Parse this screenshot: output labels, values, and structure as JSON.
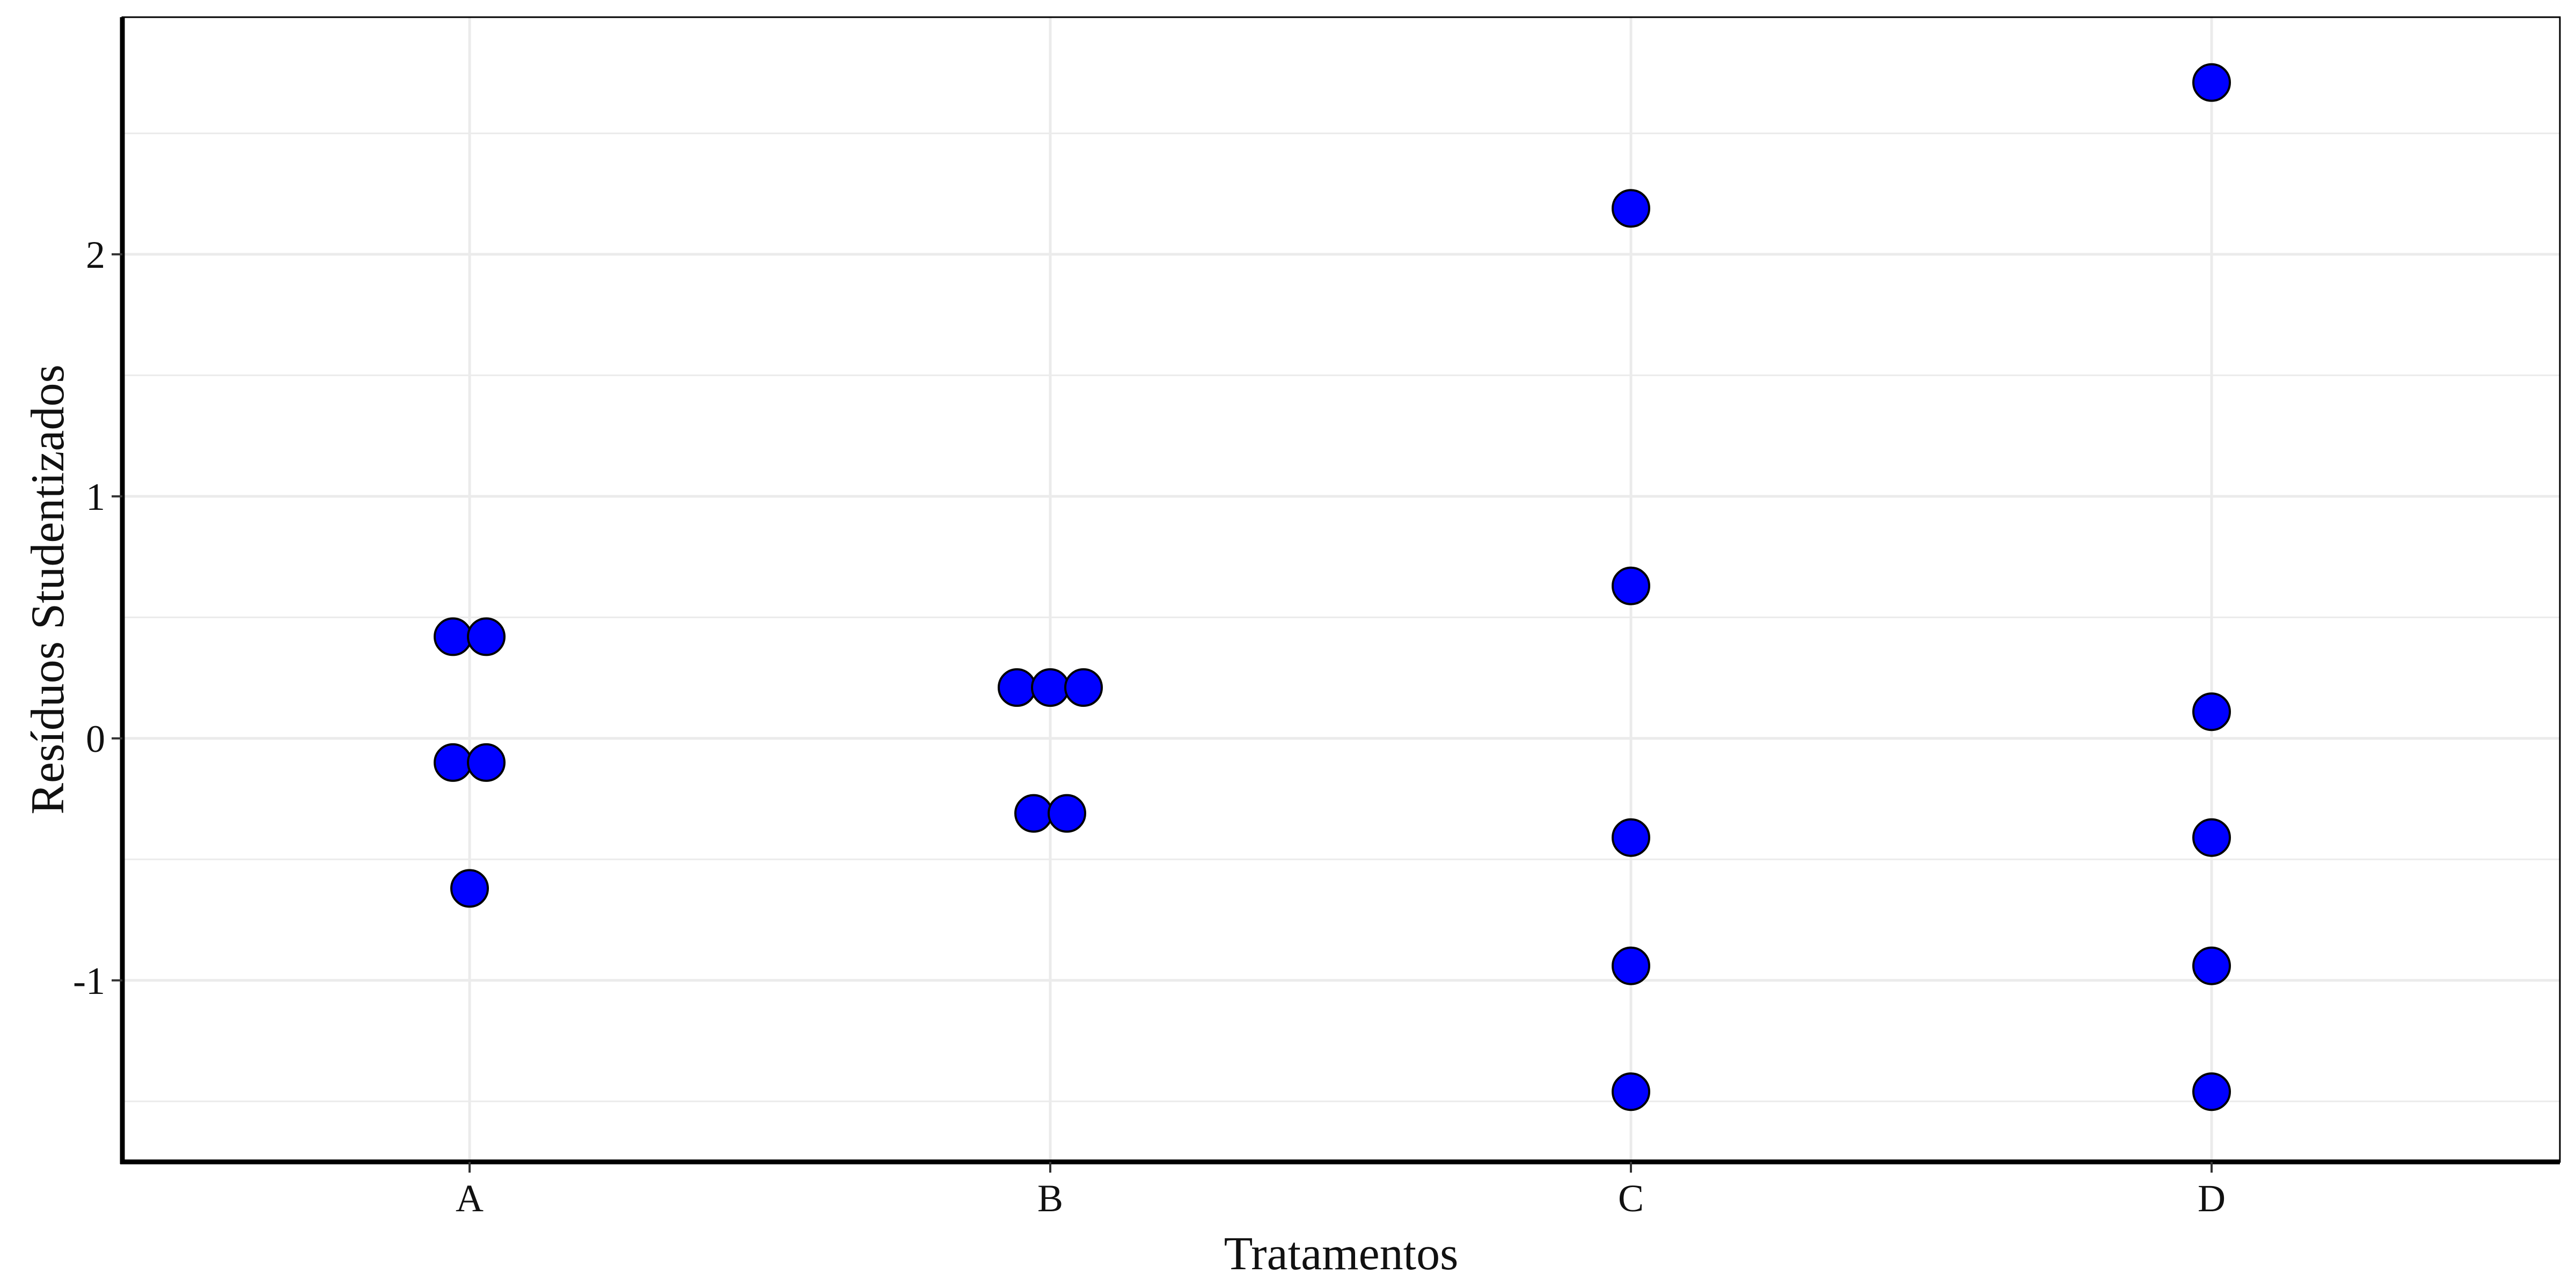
{
  "chart_data": {
    "type": "scatter",
    "title": "",
    "xlabel": "Tratamentos",
    "ylabel": "Resíduos Studentizados",
    "categories": [
      "A",
      "B",
      "C",
      "D"
    ],
    "ylim": [
      -1.75,
      2.98
    ],
    "yticks": [
      -1,
      0,
      1,
      2
    ],
    "grid": true,
    "legend": "none",
    "point_color": "#0000ff",
    "point_stroke": "#000000",
    "series": [
      {
        "points": [
          {
            "x": "A",
            "y": 0.42
          },
          {
            "x": "A",
            "y": 0.42
          },
          {
            "x": "A",
            "y": -0.1
          },
          {
            "x": "A",
            "y": -0.1
          },
          {
            "x": "A",
            "y": -0.62
          },
          {
            "x": "B",
            "y": 0.21
          },
          {
            "x": "B",
            "y": 0.21
          },
          {
            "x": "B",
            "y": 0.21
          },
          {
            "x": "B",
            "y": -0.31
          },
          {
            "x": "B",
            "y": -0.31
          },
          {
            "x": "C",
            "y": 2.19
          },
          {
            "x": "C",
            "y": 0.63
          },
          {
            "x": "C",
            "y": -0.41
          },
          {
            "x": "C",
            "y": -0.94
          },
          {
            "x": "C",
            "y": -1.46
          },
          {
            "x": "D",
            "y": 2.71
          },
          {
            "x": "D",
            "y": 0.11
          },
          {
            "x": "D",
            "y": -0.41
          },
          {
            "x": "D",
            "y": -0.94
          },
          {
            "x": "D",
            "y": -1.46
          }
        ]
      }
    ]
  }
}
